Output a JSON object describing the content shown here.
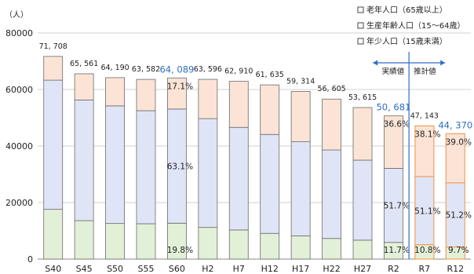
{
  "chart_data": {
    "type": "bar",
    "stacked": true,
    "unit": "（人）",
    "categories": [
      "S40",
      "S45",
      "S50",
      "S55",
      "S60",
      "H2",
      "H7",
      "H12",
      "H17",
      "H22",
      "H27",
      "R2",
      "R7",
      "R12"
    ],
    "ylim": [
      0,
      80000
    ],
    "yticks": [
      "0",
      "20000",
      "40000",
      "60000",
      "80000"
    ],
    "grid": true,
    "legend_position": "top-right",
    "series": [
      {
        "name": "年少人口（15歳未満）",
        "color": "#e3f0d8",
        "values": [
          17600,
          13600,
          12600,
          12500,
          12700,
          11200,
          10300,
          9100,
          8200,
          7300,
          6700,
          5900,
          5100,
          4300
        ]
      },
      {
        "name": "生産年齢人口（15～64歳）",
        "color": "#dfe5f6",
        "values": [
          45700,
          42700,
          41600,
          40000,
          40400,
          38500,
          36300,
          35000,
          33300,
          31300,
          28300,
          26200,
          24100,
          22700
        ]
      },
      {
        "name": "老年人口（65歳以上）",
        "color": "#fbe3d6",
        "values": [
          8408,
          9261,
          9990,
          11082,
          10989,
          13896,
          16310,
          17535,
          17814,
          18005,
          18615,
          18581,
          17943,
          17370
        ]
      }
    ],
    "totals": [
      "71, 708",
      "65, 561",
      "64, 190",
      "63, 582",
      "64, 089",
      "63, 596",
      "62, 910",
      "61, 635",
      "59, 314",
      "56, 605",
      "53, 615",
      "50, 681",
      "47, 143",
      "44, 370"
    ],
    "highlighted_totals": [
      4,
      11,
      13
    ],
    "projected_categories": [
      12,
      13
    ],
    "annotations": [
      {
        "category": 4,
        "series": 2,
        "text": "17.1%"
      },
      {
        "category": 4,
        "series": 1,
        "text": "63.1%"
      },
      {
        "category": 4,
        "series": 0,
        "text": "19.8%"
      },
      {
        "category": 11,
        "series": 2,
        "text": "36.6%"
      },
      {
        "category": 11,
        "series": 1,
        "text": "51.7%"
      },
      {
        "category": 11,
        "series": 0,
        "text": "11.7%"
      },
      {
        "category": 12,
        "series": 2,
        "text": "38.1%"
      },
      {
        "category": 12,
        "series": 1,
        "text": "51.1%"
      },
      {
        "category": 12,
        "series": 0,
        "text": "10.8%"
      },
      {
        "category": 13,
        "series": 2,
        "text": "39.0%"
      },
      {
        "category": 13,
        "series": 1,
        "text": "51.2%"
      },
      {
        "category": 13,
        "series": 0,
        "text": "9.7%"
      }
    ],
    "legend": [
      "老年人口（65歳以上）",
      "生産年齢人口（15～64歳）",
      "年少人口（15歳未満）"
    ],
    "period_labels": {
      "actual": "実績値",
      "projected": "推計値"
    }
  }
}
